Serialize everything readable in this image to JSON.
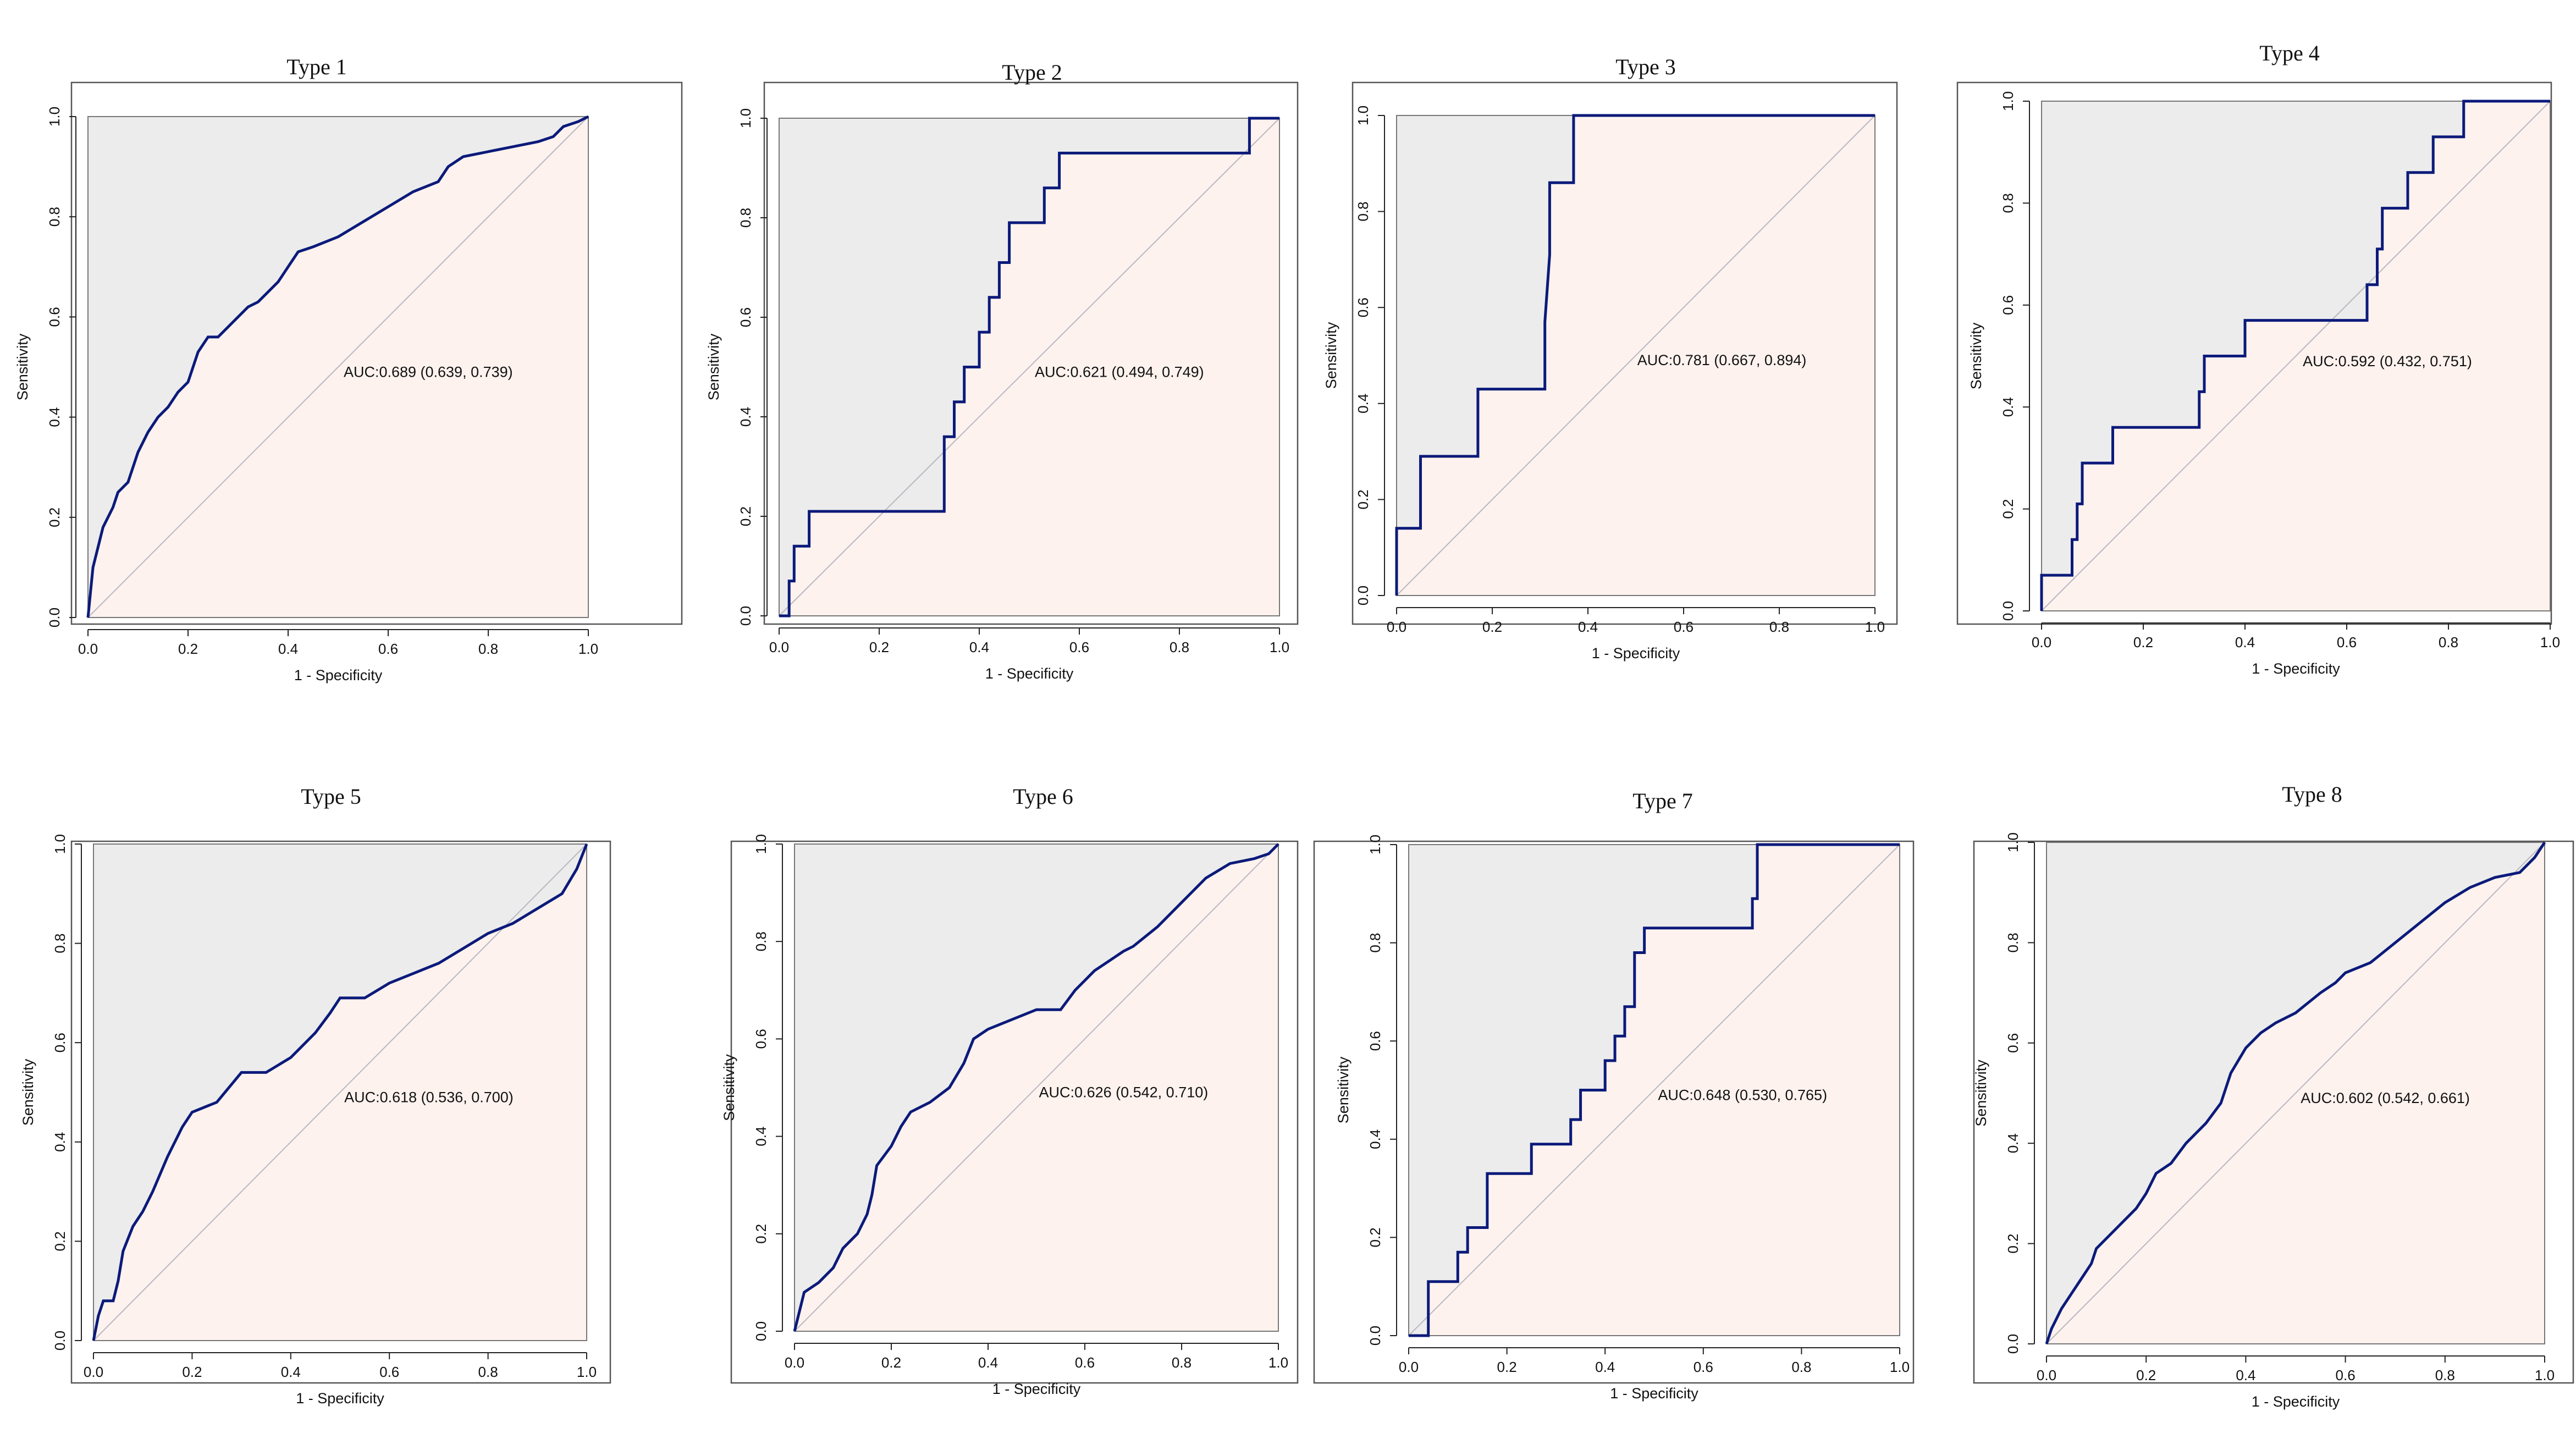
{
  "colors": {
    "upper_region": "#ececec",
    "lower_region": "#fdf2ee",
    "curve": "#0b1a7a",
    "diagonal": "#b8b8c2",
    "frame": "#555555"
  },
  "chart_data": [
    {
      "type": "line",
      "title": "Type 1",
      "xlabel": "1 - Specificity",
      "ylabel": "Sensitivity",
      "xlim": [
        0,
        1
      ],
      "ylim": [
        0,
        1
      ],
      "xticks": [
        "0.0",
        "0.2",
        "0.4",
        "0.6",
        "0.8",
        "1.0"
      ],
      "yticks": [
        "0.0",
        "0.2",
        "0.4",
        "0.6",
        "0.8",
        "1.0"
      ],
      "annotation": "AUC:0.689 (0.639, 0.739)",
      "x": [
        0,
        0.005,
        0.01,
        0.02,
        0.03,
        0.05,
        0.06,
        0.08,
        0.1,
        0.12,
        0.14,
        0.16,
        0.18,
        0.2,
        0.22,
        0.24,
        0.26,
        0.3,
        0.32,
        0.34,
        0.36,
        0.38,
        0.4,
        0.42,
        0.45,
        0.5,
        0.55,
        0.6,
        0.65,
        0.7,
        0.72,
        0.75,
        0.8,
        0.85,
        0.9,
        0.93,
        0.95,
        0.98,
        1.0
      ],
      "y": [
        0,
        0.05,
        0.1,
        0.14,
        0.18,
        0.22,
        0.25,
        0.27,
        0.33,
        0.37,
        0.4,
        0.42,
        0.45,
        0.47,
        0.53,
        0.56,
        0.56,
        0.6,
        0.62,
        0.63,
        0.65,
        0.67,
        0.7,
        0.73,
        0.74,
        0.76,
        0.79,
        0.82,
        0.85,
        0.87,
        0.9,
        0.92,
        0.93,
        0.94,
        0.95,
        0.96,
        0.98,
        0.99,
        1.0
      ]
    },
    {
      "type": "line",
      "title": "Type 2",
      "xlabel": "1 - Specificity",
      "ylabel": "Sensitivity",
      "xlim": [
        0,
        1
      ],
      "ylim": [
        0,
        1
      ],
      "xticks": [
        "0.0",
        "0.2",
        "0.4",
        "0.6",
        "0.8",
        "1.0"
      ],
      "yticks": [
        "0.0",
        "0.2",
        "0.4",
        "0.6",
        "0.8",
        "1.0"
      ],
      "annotation": "AUC:0.621 (0.494, 0.749)",
      "x": [
        0,
        0.02,
        0.02,
        0.03,
        0.03,
        0.06,
        0.06,
        0.33,
        0.33,
        0.35,
        0.35,
        0.37,
        0.37,
        0.4,
        0.4,
        0.42,
        0.42,
        0.44,
        0.44,
        0.46,
        0.46,
        0.53,
        0.53,
        0.56,
        0.56,
        0.94,
        0.94,
        1.0
      ],
      "y": [
        0,
        0,
        0.07,
        0.07,
        0.14,
        0.14,
        0.21,
        0.21,
        0.36,
        0.36,
        0.43,
        0.43,
        0.5,
        0.5,
        0.57,
        0.57,
        0.64,
        0.64,
        0.71,
        0.71,
        0.79,
        0.79,
        0.86,
        0.86,
        0.93,
        0.93,
        1.0,
        1.0
      ]
    },
    {
      "type": "line",
      "title": "Type 3",
      "xlabel": "1 - Specificity",
      "ylabel": "Sensitivity",
      "xlim": [
        0,
        1
      ],
      "ylim": [
        0,
        1
      ],
      "xticks": [
        "0.0",
        "0.2",
        "0.4",
        "0.6",
        "0.8",
        "1.0"
      ],
      "yticks": [
        "0.0",
        "0.2",
        "0.4",
        "0.6",
        "0.8",
        "1.0"
      ],
      "annotation": "AUC:0.781 (0.667, 0.894)",
      "x": [
        0,
        0,
        0.05,
        0.05,
        0.17,
        0.17,
        0.31,
        0.31,
        0.32,
        0.32,
        0.37,
        0.37,
        1.0
      ],
      "y": [
        0,
        0.14,
        0.14,
        0.29,
        0.29,
        0.43,
        0.43,
        0.57,
        0.71,
        0.86,
        0.86,
        1.0,
        1.0
      ]
    },
    {
      "type": "line",
      "title": "Type 4",
      "xlabel": "1 - Specificity",
      "ylabel": "Sensitivity",
      "xlim": [
        0,
        1
      ],
      "ylim": [
        0,
        1
      ],
      "xticks": [
        "0.0",
        "0.2",
        "0.4",
        "0.6",
        "0.8",
        "1.0"
      ],
      "yticks": [
        "0.0",
        "0.2",
        "0.4",
        "0.6",
        "0.8",
        "1.0"
      ],
      "annotation": "AUC:0.592 (0.432, 0.751)",
      "x": [
        0,
        0,
        0.06,
        0.06,
        0.07,
        0.07,
        0.08,
        0.08,
        0.14,
        0.14,
        0.31,
        0.31,
        0.32,
        0.32,
        0.4,
        0.4,
        0.64,
        0.64,
        0.66,
        0.66,
        0.67,
        0.67,
        0.72,
        0.72,
        0.77,
        0.77,
        0.83,
        0.83,
        1.0
      ],
      "y": [
        0,
        0.07,
        0.07,
        0.14,
        0.14,
        0.21,
        0.21,
        0.29,
        0.29,
        0.36,
        0.36,
        0.43,
        0.43,
        0.5,
        0.5,
        0.57,
        0.57,
        0.64,
        0.64,
        0.71,
        0.71,
        0.79,
        0.79,
        0.86,
        0.86,
        0.93,
        0.93,
        1.0,
        1.0
      ]
    },
    {
      "type": "line",
      "title": "Type 5",
      "xlabel": "1 - Specificity",
      "ylabel": "Sensitivity",
      "xlim": [
        0,
        1
      ],
      "ylim": [
        0,
        1
      ],
      "xticks": [
        "0.0",
        "0.2",
        "0.4",
        "0.6",
        "0.8",
        "1.0"
      ],
      "yticks": [
        "0.0",
        "0.2",
        "0.4",
        "0.6",
        "0.8",
        "1.0"
      ],
      "annotation": "AUC:0.618 (0.536, 0.700)",
      "x": [
        0,
        0.01,
        0.02,
        0.04,
        0.05,
        0.06,
        0.08,
        0.1,
        0.12,
        0.15,
        0.18,
        0.2,
        0.25,
        0.3,
        0.35,
        0.4,
        0.45,
        0.48,
        0.5,
        0.55,
        0.6,
        0.65,
        0.7,
        0.75,
        0.8,
        0.85,
        0.9,
        0.95,
        0.98,
        1.0
      ],
      "y": [
        0,
        0.05,
        0.08,
        0.08,
        0.12,
        0.18,
        0.23,
        0.26,
        0.3,
        0.37,
        0.43,
        0.46,
        0.48,
        0.54,
        0.54,
        0.57,
        0.62,
        0.66,
        0.69,
        0.69,
        0.72,
        0.74,
        0.76,
        0.79,
        0.82,
        0.84,
        0.87,
        0.9,
        0.95,
        1.0
      ]
    },
    {
      "type": "line",
      "title": "Type 6",
      "xlabel": "1 - Specificity",
      "ylabel": "Sensitivity",
      "xlim": [
        0,
        1
      ],
      "ylim": [
        0,
        1
      ],
      "xticks": [
        "0.0",
        "0.2",
        "0.4",
        "0.6",
        "0.8",
        "1.0"
      ],
      "yticks": [
        "0.0",
        "0.2",
        "0.4",
        "0.6",
        "0.8",
        "1.0"
      ],
      "annotation": "AUC:0.626 (0.542, 0.710)",
      "x": [
        0,
        0.005,
        0.02,
        0.05,
        0.08,
        0.1,
        0.13,
        0.15,
        0.16,
        0.17,
        0.2,
        0.22,
        0.24,
        0.28,
        0.32,
        0.35,
        0.37,
        0.4,
        0.45,
        0.5,
        0.55,
        0.58,
        0.6,
        0.62,
        0.65,
        0.68,
        0.7,
        0.75,
        0.8,
        0.85,
        0.9,
        0.95,
        0.98,
        1.0
      ],
      "y": [
        0,
        0.02,
        0.08,
        0.1,
        0.13,
        0.17,
        0.2,
        0.24,
        0.28,
        0.34,
        0.38,
        0.42,
        0.45,
        0.47,
        0.5,
        0.55,
        0.6,
        0.62,
        0.64,
        0.66,
        0.66,
        0.7,
        0.72,
        0.74,
        0.76,
        0.78,
        0.79,
        0.83,
        0.88,
        0.93,
        0.96,
        0.97,
        0.98,
        1.0
      ]
    },
    {
      "type": "line",
      "title": "Type 7",
      "xlabel": "1 - Specificity",
      "ylabel": "Sensitivity",
      "xlim": [
        0,
        1
      ],
      "ylim": [
        0,
        1
      ],
      "xticks": [
        "0.0",
        "0.2",
        "0.4",
        "0.6",
        "0.8",
        "1.0"
      ],
      "yticks": [
        "0.0",
        "0.2",
        "0.4",
        "0.6",
        "0.8",
        "1.0"
      ],
      "annotation": "AUC:0.648 (0.530, 0.765)",
      "x": [
        0,
        0.04,
        0.04,
        0.1,
        0.1,
        0.12,
        0.12,
        0.16,
        0.16,
        0.25,
        0.25,
        0.33,
        0.33,
        0.35,
        0.35,
        0.4,
        0.4,
        0.42,
        0.42,
        0.44,
        0.44,
        0.46,
        0.46,
        0.48,
        0.48,
        0.7,
        0.7,
        0.71,
        0.71,
        1.0
      ],
      "y": [
        0,
        0,
        0.11,
        0.11,
        0.17,
        0.17,
        0.22,
        0.22,
        0.33,
        0.33,
        0.39,
        0.39,
        0.44,
        0.44,
        0.5,
        0.5,
        0.56,
        0.56,
        0.61,
        0.61,
        0.67,
        0.67,
        0.78,
        0.78,
        0.83,
        0.83,
        0.89,
        0.89,
        1.0,
        1.0
      ]
    },
    {
      "type": "line",
      "title": "Type 8",
      "xlabel": "1 - Specificity",
      "ylabel": "Sensitivity",
      "xlim": [
        0,
        1
      ],
      "ylim": [
        0,
        1
      ],
      "xticks": [
        "0.0",
        "0.2",
        "0.4",
        "0.6",
        "0.8",
        "1.0"
      ],
      "yticks": [
        "0.0",
        "0.2",
        "0.4",
        "0.6",
        "0.8",
        "1.0"
      ],
      "annotation": "AUC:0.602 (0.542, 0.661)",
      "x": [
        0,
        0.01,
        0.03,
        0.05,
        0.07,
        0.09,
        0.1,
        0.12,
        0.15,
        0.18,
        0.2,
        0.22,
        0.25,
        0.28,
        0.3,
        0.32,
        0.35,
        0.37,
        0.4,
        0.43,
        0.46,
        0.5,
        0.55,
        0.58,
        0.6,
        0.65,
        0.7,
        0.75,
        0.8,
        0.85,
        0.9,
        0.95,
        0.98,
        1.0
      ],
      "y": [
        0,
        0.03,
        0.07,
        0.1,
        0.13,
        0.16,
        0.19,
        0.21,
        0.24,
        0.27,
        0.3,
        0.34,
        0.36,
        0.4,
        0.42,
        0.44,
        0.48,
        0.54,
        0.59,
        0.62,
        0.64,
        0.66,
        0.7,
        0.72,
        0.74,
        0.76,
        0.8,
        0.84,
        0.88,
        0.91,
        0.93,
        0.94,
        0.97,
        1.0
      ]
    }
  ]
}
